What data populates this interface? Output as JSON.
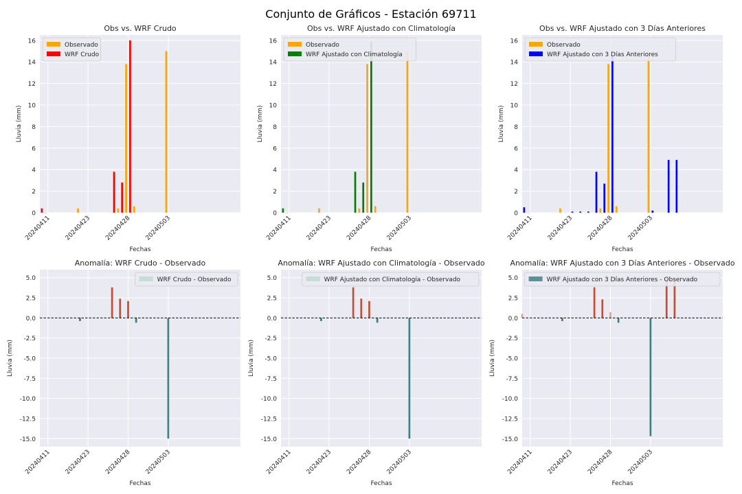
{
  "figure_title": "Conjunto de Gráficos - Estación 69711",
  "colors": {
    "background": "#eaeaf2",
    "grid": "#ffffff",
    "observado": "#ffa500",
    "wrf_crudo": "#ff0000",
    "wrf_clima": "#008000",
    "wrf_3dias": "#0000ff",
    "anom_pos": "#c44e33",
    "anom_neg": "#3f7f86",
    "anom_near_zero": "#e6f0ee"
  },
  "chart_data": [
    {
      "type": "bar",
      "title": "Obs vs. WRF Crudo",
      "xlabel": "Fechas",
      "ylabel": "Lluvia (mm)",
      "x_ticks": [
        "20240411",
        "20240423",
        "20240428",
        "20240503"
      ],
      "xlim": [
        0,
        25
      ],
      "ylim": [
        0,
        16.5
      ],
      "yticks": [
        0,
        2,
        4,
        6,
        8,
        10,
        12,
        14,
        16
      ],
      "legend_position": "top-left",
      "series": [
        {
          "name": "Observado",
          "color": "#ffa500",
          "offset": -0.25,
          "x": [
            1,
            5,
            10,
            11,
            12,
            16
          ],
          "values": [
            0.0,
            0.4,
            0.4,
            13.8,
            0.6,
            15.0
          ]
        },
        {
          "name": "WRF Crudo",
          "color": "#ff0000",
          "offset": 0.25,
          "x": [
            0,
            9,
            10,
            11
          ],
          "values": [
            0.4,
            3.8,
            2.8,
            16.0
          ]
        }
      ]
    },
    {
      "type": "bar",
      "title": "Obs vs. WRF Ajustado con Climatología",
      "xlabel": "Fechas",
      "ylabel": "Lluvia (mm)",
      "x_ticks": [
        "20240411",
        "20240423",
        "20240428",
        "20240503"
      ],
      "xlim": [
        0,
        25
      ],
      "ylim": [
        0,
        16.5
      ],
      "yticks": [
        0,
        2,
        4,
        6,
        8,
        10,
        12,
        14,
        16
      ],
      "legend_position": "top-left",
      "series": [
        {
          "name": "Observado",
          "color": "#ffa500",
          "offset": -0.25,
          "x": [
            1,
            5,
            10,
            11,
            12,
            16
          ],
          "values": [
            0.0,
            0.4,
            0.4,
            13.8,
            0.6,
            15.0
          ]
        },
        {
          "name": "WRF Ajustado con Climatología",
          "color": "#008000",
          "offset": 0.25,
          "x": [
            0,
            9,
            10,
            11
          ],
          "values": [
            0.4,
            3.8,
            2.8,
            15.9
          ]
        }
      ]
    },
    {
      "type": "bar",
      "title": "Obs vs. WRF Ajustado con 3 Días Anteriores",
      "xlabel": "Fechas",
      "ylabel": "Lluvia (mm)",
      "x_ticks": [
        "20240411",
        "20240423",
        "20240428",
        "20240503"
      ],
      "xlim": [
        0,
        25
      ],
      "ylim": [
        0,
        16.5
      ],
      "yticks": [
        0,
        2,
        4,
        6,
        8,
        10,
        12,
        14,
        16
      ],
      "legend_position": "top-left",
      "series": [
        {
          "name": "Observado",
          "color": "#ffa500",
          "offset": -0.25,
          "x": [
            1,
            5,
            10,
            11,
            12,
            16
          ],
          "values": [
            0.0,
            0.4,
            0.4,
            13.8,
            0.6,
            15.0
          ]
        },
        {
          "name": "WRF Ajustado con 3 Días Anteriores",
          "color": "#0000ff",
          "offset": 0.25,
          "x": [
            0,
            6,
            7,
            8,
            9,
            10,
            11,
            16,
            18,
            19
          ],
          "values": [
            0.5,
            0.1,
            0.1,
            0.1,
            3.8,
            2.7,
            14.5,
            0.2,
            4.9,
            4.9
          ]
        }
      ]
    },
    {
      "type": "bar",
      "title": "Anomalía: WRF Crudo - Observado",
      "xlabel": "Fechas",
      "ylabel": "Lluvia (mm)",
      "x_ticks": [
        "20240411",
        "20240423",
        "20240428",
        "20240503"
      ],
      "xlim": [
        0,
        25
      ],
      "ylim": [
        -16.0,
        6.0
      ],
      "yticks": [
        5.0,
        2.5,
        0.0,
        -2.5,
        -5.0,
        -7.5,
        -10.0,
        -12.5,
        -15.0
      ],
      "legend_position": "top-right",
      "zero_line": true,
      "series": [
        {
          "name": "WRF Crudo - Observado",
          "x": [
            0,
            5,
            9,
            10,
            11,
            12,
            16
          ],
          "values": [
            0.3,
            -0.4,
            3.8,
            2.4,
            2.1,
            -0.6,
            -15.0
          ]
        }
      ]
    },
    {
      "type": "bar",
      "title": "Anomalía: WRF Ajustado con Climatología - Observado",
      "xlabel": "Fechas",
      "ylabel": "Lluvia (mm)",
      "x_ticks": [
        "20240411",
        "20240423",
        "20240428",
        "20240503"
      ],
      "xlim": [
        0,
        25
      ],
      "ylim": [
        -16.0,
        6.0
      ],
      "yticks": [
        5.0,
        2.5,
        0.0,
        -2.5,
        -5.0,
        -7.5,
        -10.0,
        -12.5,
        -15.0
      ],
      "legend_position": "top-right",
      "zero_line": true,
      "series": [
        {
          "name": "WRF Ajustado con Climatología - Observado",
          "x": [
            0,
            5,
            9,
            10,
            11,
            12,
            16
          ],
          "values": [
            0.3,
            -0.4,
            3.8,
            2.4,
            2.1,
            -0.6,
            -15.0
          ]
        }
      ]
    },
    {
      "type": "bar",
      "title": "Anomalía: WRF Ajustado con 3 Días Anteriores - Observado",
      "xlabel": "Fechas",
      "ylabel": "Lluvia (mm)",
      "x_ticks": [
        "20240411",
        "20240423",
        "20240428",
        "20240503"
      ],
      "xlim": [
        0,
        25
      ],
      "ylim": [
        -16.0,
        6.0
      ],
      "yticks": [
        5.0,
        2.5,
        0.0,
        -2.5,
        -5.0,
        -7.5,
        -10.0,
        -12.5,
        -15.0
      ],
      "legend_position": "top-right",
      "zero_line": true,
      "series": [
        {
          "name": "WRF Ajustado con 3 Días Anteriores - Observado",
          "x": [
            0,
            5,
            9,
            10,
            11,
            12,
            16,
            18,
            19
          ],
          "values": [
            0.5,
            -0.4,
            3.8,
            2.3,
            0.7,
            -0.6,
            -14.7,
            4.9,
            4.9
          ]
        }
      ]
    }
  ]
}
